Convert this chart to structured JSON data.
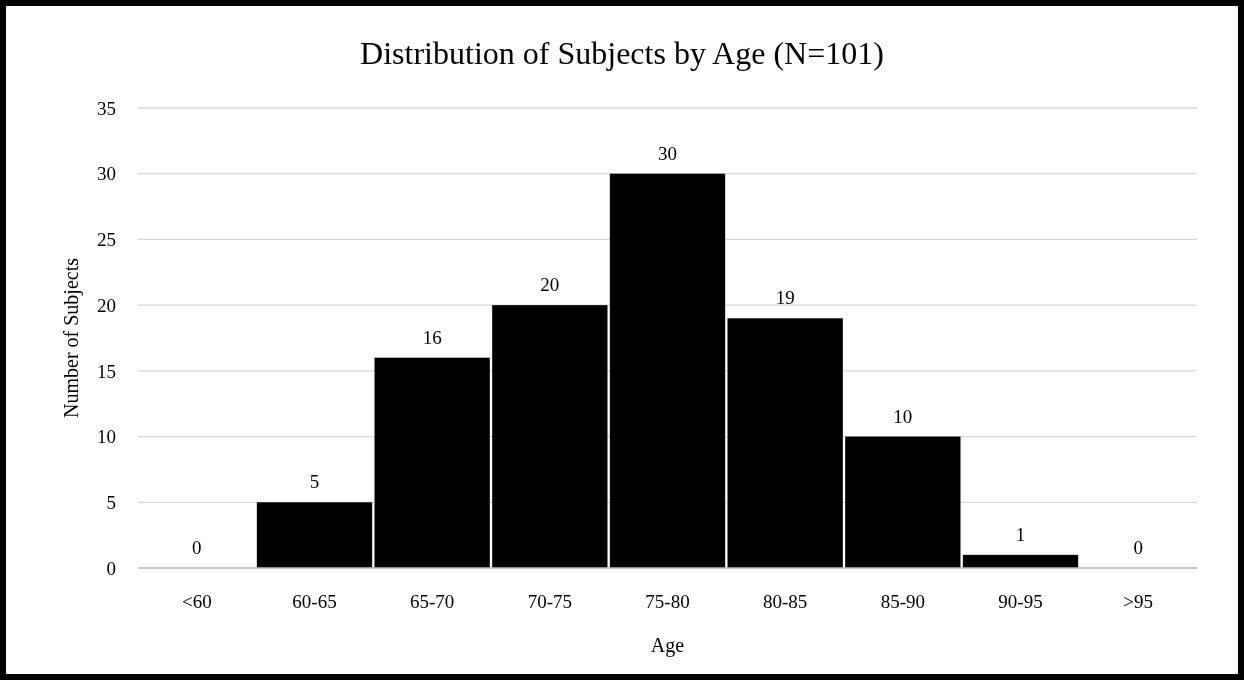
{
  "chart_data": {
    "type": "bar",
    "title": "Distribution of Subjects by Age (N=101)",
    "xlabel": "Age",
    "ylabel": "Number of Subjects",
    "categories": [
      "<60",
      "60-65",
      "65-70",
      "70-75",
      "75-80",
      "80-85",
      "85-90",
      "90-95",
      ">95"
    ],
    "values": [
      0,
      5,
      16,
      20,
      30,
      19,
      10,
      1,
      0
    ],
    "color": "#000000",
    "ylim": [
      0,
      35
    ],
    "yticks": [
      0,
      5,
      10,
      15,
      20,
      25,
      30,
      35
    ],
    "grid": "y",
    "data_labels": true
  }
}
